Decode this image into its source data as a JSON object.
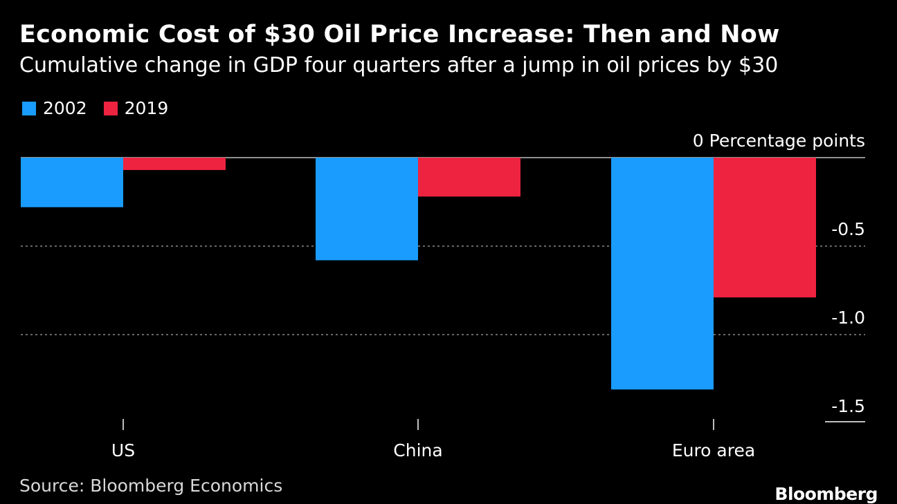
{
  "chart_data": {
    "type": "bar",
    "title": "Economic Cost of $30 Oil Price Increase: Then and Now",
    "subtitle": "Cumulative change in GDP four quarters after a jump in oil prices by $30",
    "categories": [
      "US",
      "China",
      "Euro area"
    ],
    "series": [
      {
        "name": "2002",
        "color": "#1a9cff",
        "values": [
          -0.28,
          -0.58,
          -1.31
        ]
      },
      {
        "name": "2019",
        "color": "#ee2340",
        "values": [
          -0.07,
          -0.22,
          -0.79
        ]
      }
    ],
    "yunit": "Percentage points",
    "ylim": [
      -1.5,
      0
    ],
    "yticks": [
      {
        "value": 0,
        "label": "0"
      },
      {
        "value": -0.5,
        "label": "-0.5"
      },
      {
        "value": -1.0,
        "label": "-1.0"
      },
      {
        "value": -1.5,
        "label": "-1.5"
      }
    ],
    "legend_position": "top-left",
    "grid": true
  },
  "footer": {
    "source": "Source: Bloomberg Economics",
    "brand": "Bloomberg"
  }
}
